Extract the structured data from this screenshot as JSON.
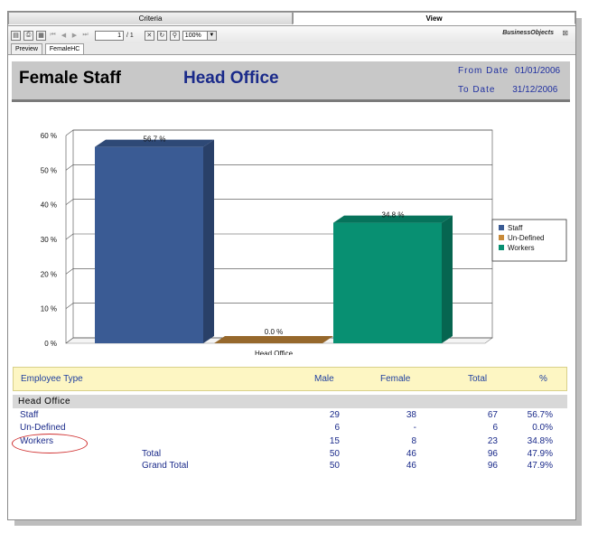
{
  "tabs": {
    "criteria": "Criteria",
    "view": "View"
  },
  "toolbar": {
    "icons": [
      "export-icon",
      "print-icon",
      "group-tree-icon",
      "first-page-icon",
      "prev-page-icon",
      "next-page-icon",
      "last-page-icon",
      "close-view-icon",
      "refresh-icon",
      "search-icon"
    ],
    "page_current": "1",
    "page_total": "/ 1",
    "zoom": "100%",
    "logo": "BusinessObjects"
  },
  "subtabs": [
    "Preview",
    "FemaleHC"
  ],
  "report": {
    "title": "Female Staff",
    "office": "Head Office",
    "from_label": "From Date",
    "from_value": "01/01/2006",
    "to_label": "To Date",
    "to_value": "31/12/2006"
  },
  "chart_data": {
    "type": "bar",
    "categories": [
      "Head Office"
    ],
    "series": [
      {
        "name": "Staff",
        "values": [
          56.7
        ],
        "label": "56.7 %",
        "color": "#3a5b94"
      },
      {
        "name": "Un-Defined",
        "values": [
          0.0
        ],
        "label": "0.0 %",
        "color": "#c88a3a"
      },
      {
        "name": "Workers",
        "values": [
          34.8
        ],
        "label": "34.8 %",
        "color": "#089072"
      }
    ],
    "yticks": [
      "0 %",
      "10 %",
      "20 %",
      "30 %",
      "40 %",
      "50 %",
      "60 %"
    ],
    "ylim": [
      0,
      60
    ],
    "grid": true,
    "legend": "right"
  },
  "table": {
    "headers": {
      "type": "Employee Type",
      "male": "Male",
      "female": "Female",
      "total": "Total",
      "pct": "%"
    },
    "group": "Head Office",
    "rows": [
      {
        "label": "Staff",
        "male": "29",
        "female": "38",
        "total": "67",
        "pct": "56.7%"
      },
      {
        "label": "Un-Defined",
        "male": "6",
        "female": "-",
        "total": "6",
        "pct": "0.0%"
      },
      {
        "label": "Workers",
        "male": "15",
        "female": "8",
        "total": "23",
        "pct": "34.8%"
      }
    ],
    "total_row": {
      "label": "Total",
      "male": "50",
      "female": "46",
      "total": "96",
      "pct": "47.9%"
    },
    "grand_row": {
      "label": "Grand Total",
      "male": "50",
      "female": "46",
      "total": "96",
      "pct": "47.9%"
    }
  }
}
